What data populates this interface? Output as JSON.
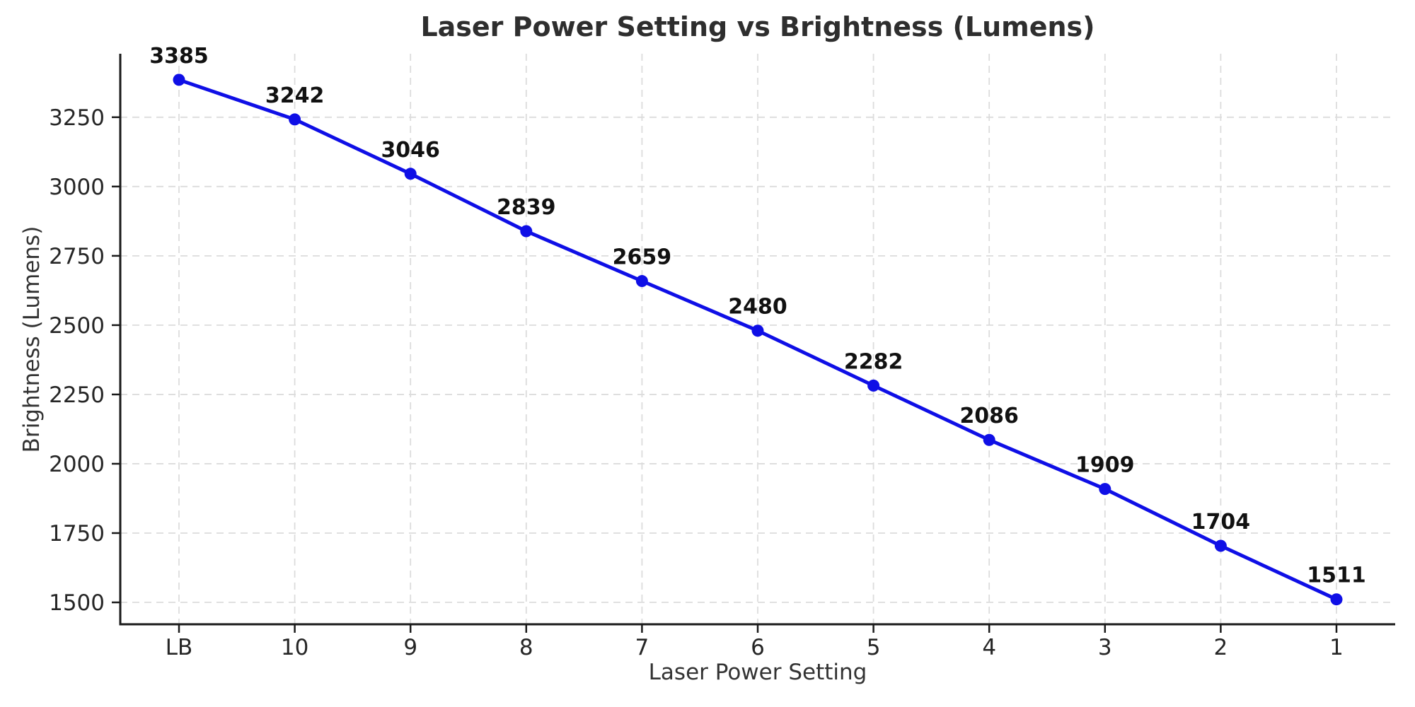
{
  "chart_data": {
    "type": "line",
    "title": "Laser Power Setting vs Brightness (Lumens)",
    "xlabel": "Laser Power Setting",
    "ylabel": "Brightness (Lumens)",
    "categories": [
      "LB",
      "10",
      "9",
      "8",
      "7",
      "6",
      "5",
      "4",
      "3",
      "2",
      "1"
    ],
    "series": [
      {
        "name": "Brightness (Lumens)",
        "values": [
          3385,
          3242,
          3046,
          2839,
          2659,
          2480,
          2282,
          2086,
          1909,
          1704,
          1511
        ]
      }
    ],
    "yticks": [
      1500,
      1750,
      2000,
      2250,
      2500,
      2750,
      3000,
      3250
    ],
    "ylim": [
      1421,
      3479
    ],
    "grid": true,
    "grid_style": "dashed",
    "legend": false,
    "data_labels_shown": true,
    "colors": {
      "line": "#0F0FE6",
      "marker": "#0F0FE6",
      "grid": "#DCDCDC",
      "axis": "#1A1A1A",
      "tick_label": "#262626",
      "title": "#2E2E2E",
      "axis_label": "#333333",
      "data_label": "#111111",
      "background": "#FFFFFF"
    }
  }
}
